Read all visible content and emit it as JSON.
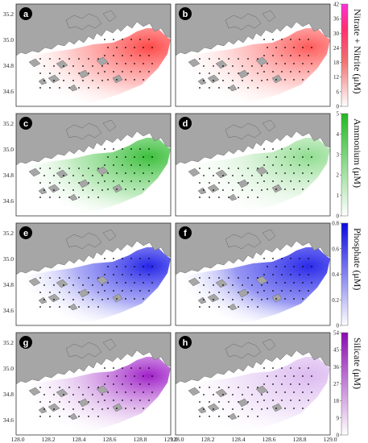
{
  "panels": [
    {
      "label": "a",
      "group": 0
    },
    {
      "label": "b",
      "group": 0
    },
    {
      "label": "c",
      "group": 1
    },
    {
      "label": "d",
      "group": 1
    },
    {
      "label": "e",
      "group": 2
    },
    {
      "label": "f",
      "group": 2
    },
    {
      "label": "g",
      "group": 3
    },
    {
      "label": "h",
      "group": 3
    }
  ],
  "y_axis_ticks": [
    "35.2",
    "35.0",
    "34.8",
    "34.6"
  ],
  "x_axis_ticks": [
    "128.0",
    "128.2",
    "128.4",
    "128.6",
    "128.8",
    "129.0"
  ],
  "colorbars": [
    {
      "title": "Nitrate + Nitrite (μM)",
      "ticks": [
        "42",
        "36",
        "30",
        "24",
        "18",
        "12",
        "6",
        "0"
      ],
      "color": "#ff2fb8",
      "mid": "#f06a6a"
    },
    {
      "title": "Ammonium (μM)",
      "ticks": [
        "5",
        "4",
        "3",
        "2",
        "1",
        "0"
      ],
      "color": "#2fbf2f",
      "mid": "#5fcf5f"
    },
    {
      "title": "Phosphate (μM)",
      "ticks": [
        "0.8",
        "0.6",
        "0.4",
        "0.2",
        "0"
      ],
      "color": "#1414e6",
      "mid": "#6060ee"
    },
    {
      "title": "Silicate (μM)",
      "ticks": [
        "54",
        "45",
        "36",
        "27",
        "18",
        "9",
        "0"
      ],
      "color": "#8a0ab0",
      "mid": "#c070d8"
    }
  ],
  "colors": {
    "land": "#a6a6a6",
    "frame": "#333333",
    "station": "#000000"
  }
}
